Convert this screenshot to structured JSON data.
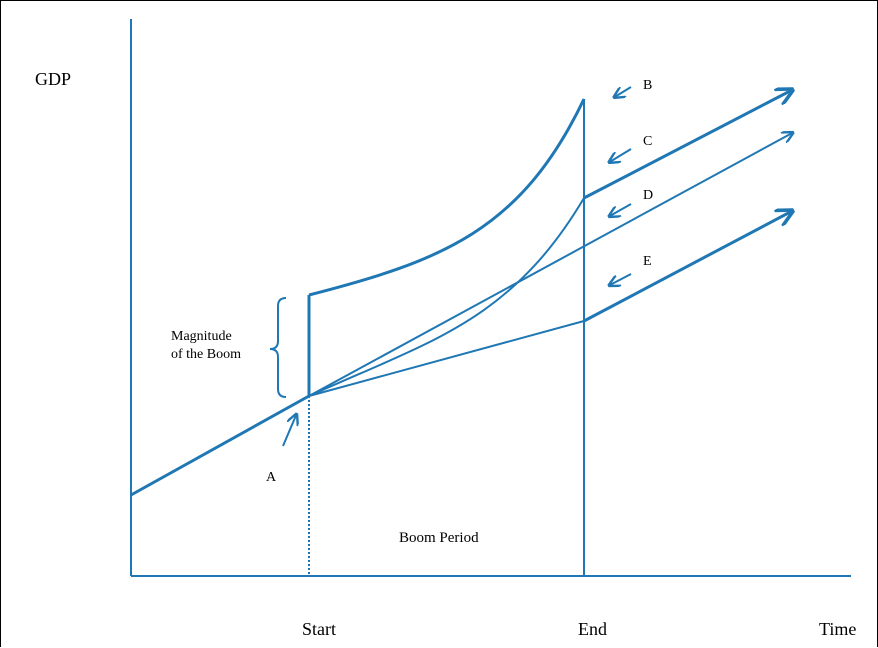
{
  "diagram": {
    "y_axis_label": "GDP",
    "x_axis_label": "Time",
    "x_ticks": {
      "start": "Start",
      "end": "End"
    },
    "period_label": "Boom Period",
    "magnitude_label": {
      "line1": "Magnitude",
      "line2": "of the Boom"
    },
    "path_labels": {
      "A": "A",
      "B": "B",
      "C": "C",
      "D": "D",
      "E": "E"
    },
    "colors": {
      "line": "#1F77B4",
      "text": "#000000",
      "border": "#000000"
    }
  }
}
